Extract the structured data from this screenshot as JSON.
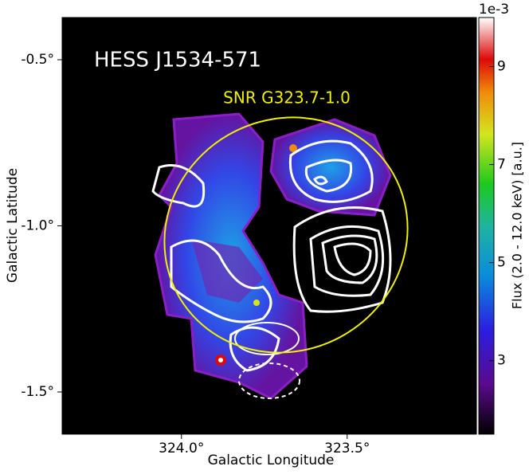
{
  "chart_data": {
    "type": "image",
    "title": "HESS J1534-571",
    "annotation": "SNR G323.7-1.0",
    "x_label": "Galactic Longitude",
    "y_label": "Galactic Latitude",
    "xlim": [
      324.36,
      323.11
    ],
    "xticks": [
      {
        "value": 324.0,
        "label": "324.0°"
      },
      {
        "value": 323.5,
        "label": "323.5°"
      }
    ],
    "ylim": [
      -1.627,
      -0.373
    ],
    "yticks": [
      {
        "value": -0.5,
        "label": "-0.5°"
      },
      {
        "value": -1.0,
        "label": "-1.0°"
      },
      {
        "value": -1.5,
        "label": "-1.5°"
      }
    ],
    "colorbar_label": "Flux (2.0 - 12.0 keV) [a.u.]",
    "colorbar_offset": "1e-3",
    "zlim": [
      1.5,
      10.0
    ],
    "zticks": [
      3,
      5,
      7,
      9
    ]
  }
}
